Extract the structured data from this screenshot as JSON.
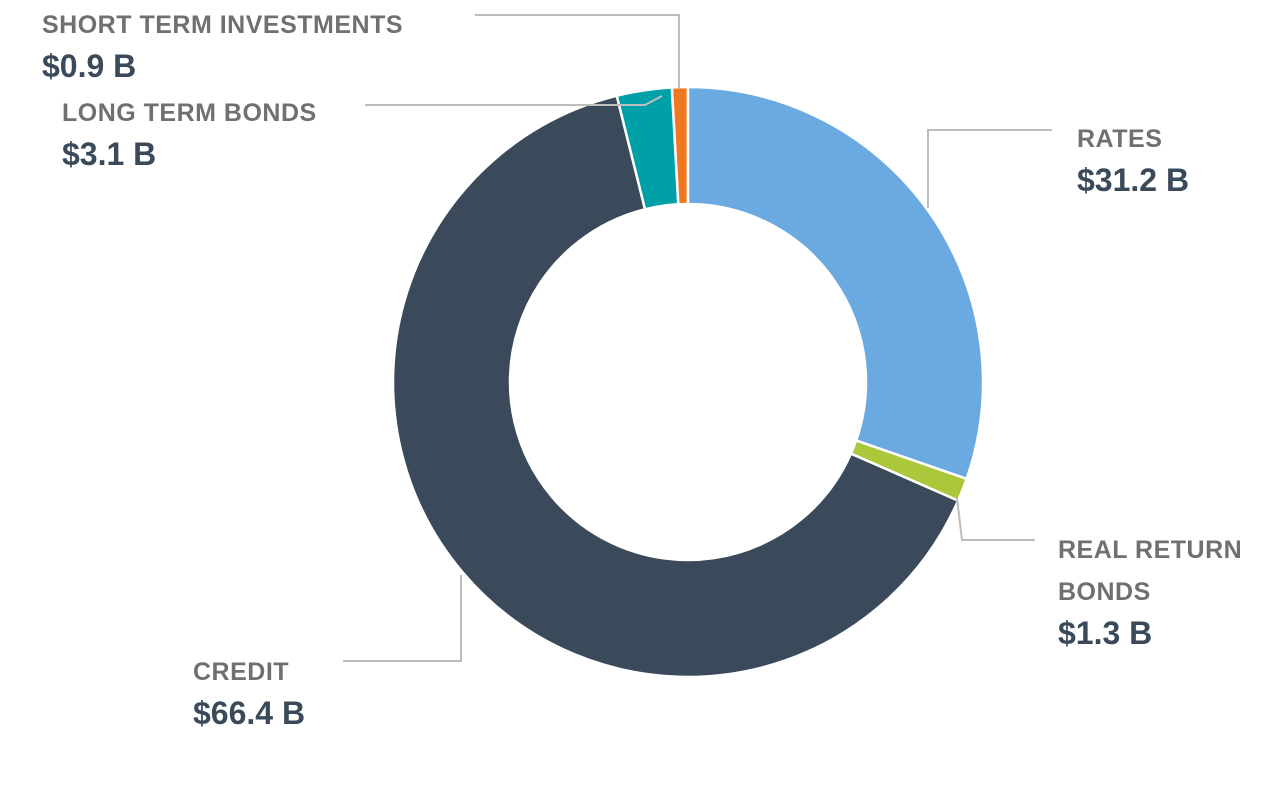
{
  "chart_data": {
    "type": "donut",
    "categories": [
      "RATES",
      "REAL RETURN BONDS",
      "CREDIT",
      "LONG TERM BONDS",
      "SHORT TERM INVESTMENTS"
    ],
    "values": [
      31.2,
      1.3,
      66.4,
      3.1,
      0.9
    ],
    "value_labels": [
      "$31.2 B",
      "$1.3 B",
      "$66.4 B",
      "$3.1 B",
      "$0.9 B"
    ],
    "colors": [
      "#6aaae0",
      "#aac83a",
      "#3a4a5a",
      "#00a0a8",
      "#f07820"
    ]
  }
}
